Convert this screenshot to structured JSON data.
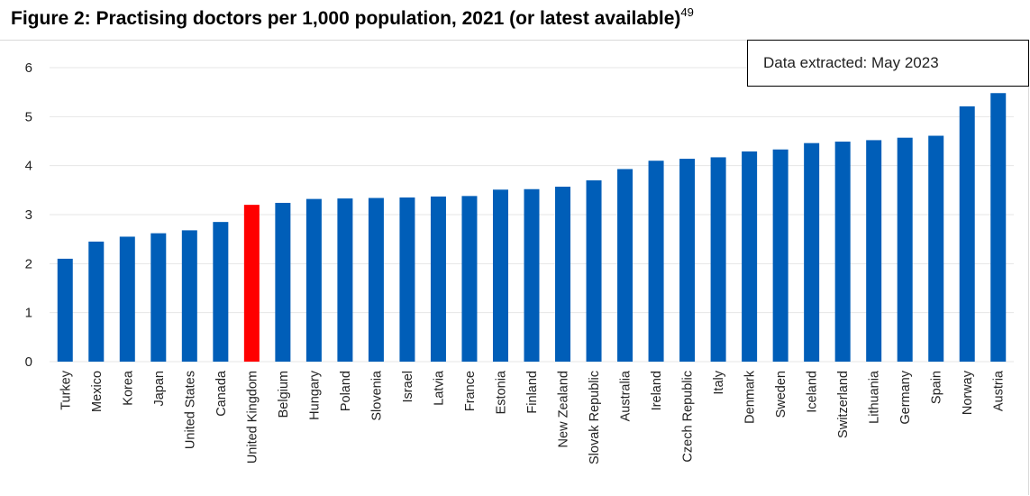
{
  "title": {
    "text": "Figure 2: Practising doctors per 1,000 population, 2021 (or latest available)",
    "footnote_ref": "49"
  },
  "note": "Data extracted: May 2023",
  "colors": {
    "default_bar": "#005EB8",
    "highlight_bar": "#FF0000",
    "gridline": "#e6e6e6"
  },
  "chart_data": {
    "type": "bar",
    "title": "Figure 2: Practising doctors per 1,000 population, 2021 (or latest available)",
    "xlabel": "",
    "ylabel": "",
    "ylim": [
      0,
      6
    ],
    "yticks": [
      "0",
      "1",
      "2",
      "3",
      "4",
      "5",
      "6"
    ],
    "grid": true,
    "categories": [
      "Turkey",
      "Mexico",
      "Korea",
      "Japan",
      "United States",
      "Canada",
      "United Kingdom",
      "Belgium",
      "Hungary",
      "Poland",
      "Slovenia",
      "Israel",
      "Latvia",
      "France",
      "Estonia",
      "Finland",
      "New Zealand",
      "Slovak Republic",
      "Australia",
      "Ireland",
      "Czech Republic",
      "Italy",
      "Denmark",
      "Sweden",
      "Iceland",
      "Switzerland",
      "Lithuania",
      "Germany",
      "Spain",
      "Norway",
      "Austria"
    ],
    "values": [
      2.1,
      2.45,
      2.55,
      2.62,
      2.68,
      2.85,
      3.2,
      3.24,
      3.32,
      3.33,
      3.34,
      3.35,
      3.37,
      3.38,
      3.51,
      3.52,
      3.57,
      3.7,
      3.93,
      4.1,
      4.14,
      4.17,
      4.29,
      4.33,
      4.46,
      4.49,
      4.52,
      4.57,
      4.61,
      5.21,
      5.48
    ],
    "highlight": "United Kingdom"
  }
}
